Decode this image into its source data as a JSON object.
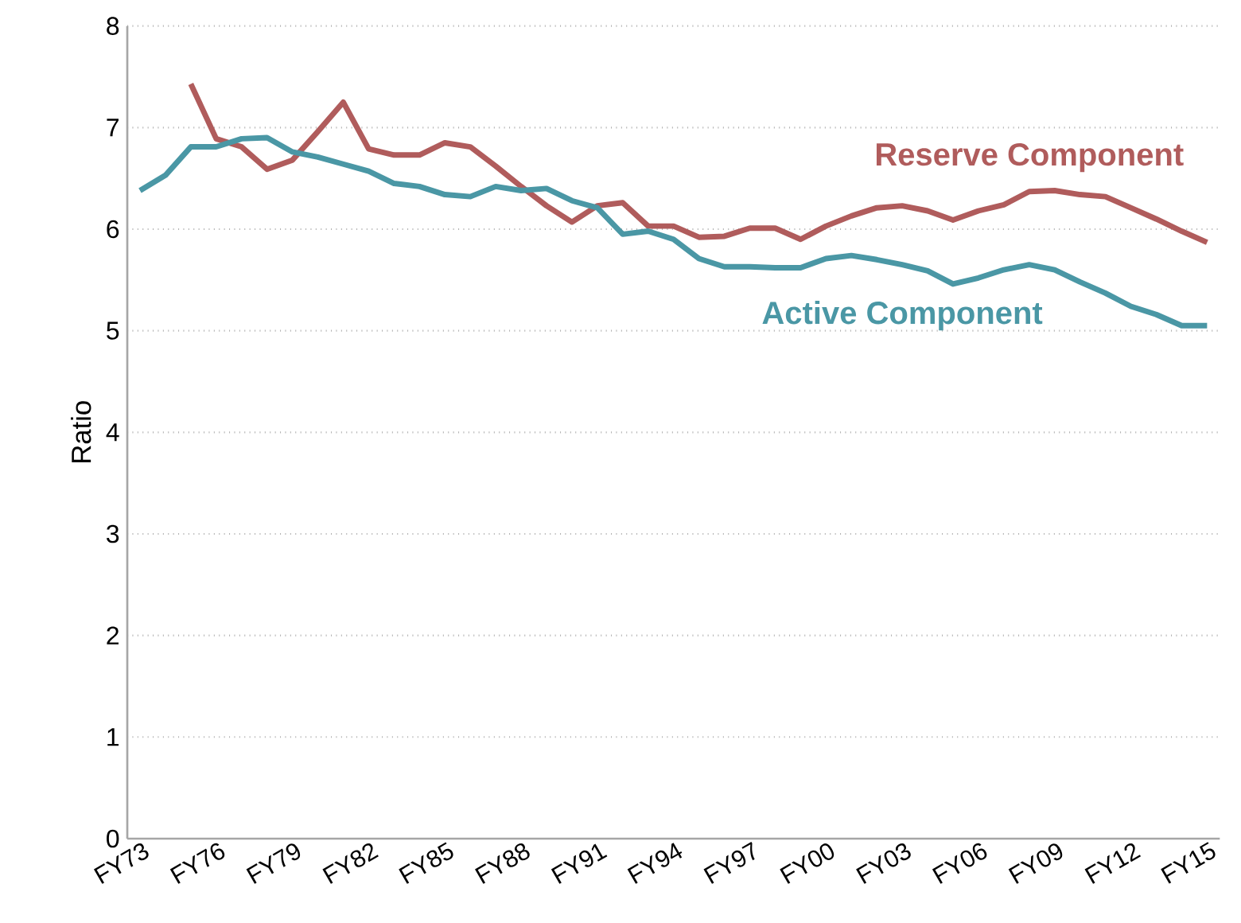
{
  "chart_data": {
    "type": "line",
    "ylabel": "Ratio",
    "categories": [
      "FY73",
      null,
      null,
      "FY76",
      null,
      null,
      "FY79",
      null,
      null,
      "FY82",
      null,
      null,
      "FY85",
      null,
      null,
      "FY88",
      null,
      null,
      "FY91",
      null,
      null,
      "FY94",
      null,
      null,
      "FY97",
      null,
      null,
      "FY00",
      null,
      null,
      "FY03",
      null,
      null,
      "FY06",
      null,
      null,
      "FY09",
      null,
      null,
      "FY12",
      null,
      null,
      "FY15"
    ],
    "series": [
      {
        "name": "Reserve Component",
        "color": "#b05c5c",
        "values": [
          null,
          null,
          7.43,
          6.89,
          6.81,
          6.59,
          6.68,
          6.96,
          7.25,
          6.79,
          6.73,
          6.73,
          6.85,
          6.81,
          6.62,
          6.42,
          6.23,
          6.07,
          6.23,
          6.26,
          6.03,
          6.03,
          5.92,
          5.93,
          6.01,
          6.01,
          5.9,
          6.03,
          6.13,
          6.21,
          6.23,
          6.18,
          6.09,
          6.18,
          6.24,
          6.37,
          6.38,
          6.34,
          6.32,
          6.21,
          6.1,
          5.98,
          5.87
        ]
      },
      {
        "name": "Active Component",
        "color": "#4a97a5",
        "values": [
          6.38,
          6.53,
          6.81,
          6.81,
          6.89,
          6.9,
          6.76,
          6.71,
          6.64,
          6.57,
          6.45,
          6.42,
          6.34,
          6.32,
          6.42,
          6.38,
          6.4,
          6.28,
          6.21,
          5.95,
          5.98,
          5.9,
          5.71,
          5.63,
          5.63,
          5.62,
          5.62,
          5.71,
          5.74,
          5.7,
          5.65,
          5.59,
          5.46,
          5.52,
          5.6,
          5.65,
          5.6,
          5.48,
          5.37,
          5.24,
          5.16,
          5.05,
          5.05
        ]
      }
    ],
    "ylim": [
      0,
      8
    ],
    "yticks": [
      0,
      1,
      2,
      3,
      4,
      5,
      6,
      7,
      8
    ],
    "grid": "y",
    "line_style": "solid",
    "marker": "none"
  }
}
